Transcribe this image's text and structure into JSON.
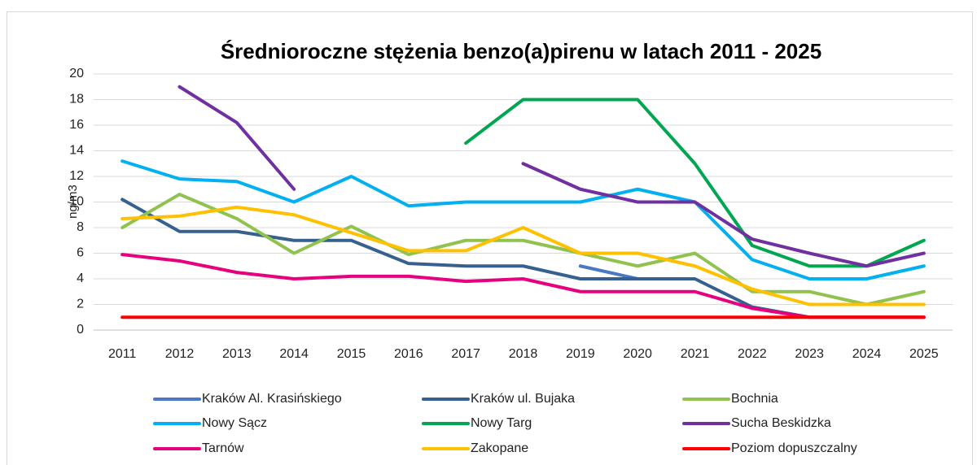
{
  "chart_data": {
    "type": "line",
    "title": "Średnioroczne stężenia benzo(a)pirenu w latach 2011 - 2025",
    "y_label": "ng/m3",
    "categories": [
      "2011",
      "2012",
      "2013",
      "2014",
      "2015",
      "2016",
      "2017",
      "2018",
      "2019",
      "2020",
      "2021",
      "2022",
      "2023",
      "2024",
      "2025"
    ],
    "ylim": [
      0,
      20
    ],
    "yticks": [
      0,
      2,
      4,
      6,
      8,
      10,
      12,
      14,
      16,
      18,
      20
    ],
    "grid": true,
    "legend": "bottom",
    "series": [
      {
        "name": "Kraków Al. Krasińskiego",
        "color": "#4a78c4",
        "values": [
          null,
          null,
          null,
          null,
          null,
          null,
          null,
          null,
          5,
          4,
          null,
          null,
          null,
          null,
          null
        ]
      },
      {
        "name": "Kraków ul. Bujaka",
        "color": "#36618f",
        "values": [
          10.2,
          7.7,
          7.7,
          7,
          7,
          5.2,
          5,
          5,
          4,
          4,
          4,
          1.8,
          1,
          1,
          1
        ]
      },
      {
        "name": "Bochnia",
        "color": "#8fc24e",
        "values": [
          8,
          10.6,
          8.7,
          6,
          8.1,
          5.9,
          7,
          7,
          6,
          5,
          6,
          3,
          3,
          2,
          3
        ]
      },
      {
        "name": "Nowy Sącz",
        "color": "#00b0f0",
        "values": [
          13.2,
          11.8,
          11.6,
          10,
          12,
          9.7,
          10,
          10,
          10,
          11,
          10,
          5.5,
          4,
          4,
          5
        ]
      },
      {
        "name": "Nowy Targ",
        "color": "#00a650",
        "values": [
          null,
          null,
          null,
          null,
          null,
          null,
          14.6,
          18,
          18,
          18,
          13,
          6.6,
          5,
          5,
          7
        ]
      },
      {
        "name": "Sucha Beskidzka",
        "color": "#7030a0",
        "values": [
          null,
          19,
          16.2,
          11,
          null,
          null,
          null,
          13,
          11,
          10,
          10,
          7.1,
          6,
          5,
          6
        ]
      },
      {
        "name": "Tarnów",
        "color": "#e6007e",
        "values": [
          5.9,
          5.4,
          4.5,
          4,
          4.2,
          4.2,
          3.8,
          4,
          3,
          3,
          3,
          1.7,
          1,
          1,
          1
        ]
      },
      {
        "name": "Zakopane",
        "color": "#ffc000",
        "values": [
          8.7,
          8.9,
          9.6,
          9,
          7.6,
          6.2,
          6.2,
          8,
          6,
          6,
          5,
          3.2,
          2,
          2,
          2
        ]
      },
      {
        "name": "Poziom dopuszczalny",
        "color": "#ff0000",
        "values": [
          1,
          1,
          1,
          1,
          1,
          1,
          1,
          1,
          1,
          1,
          1,
          1,
          1,
          1,
          1
        ]
      }
    ]
  }
}
